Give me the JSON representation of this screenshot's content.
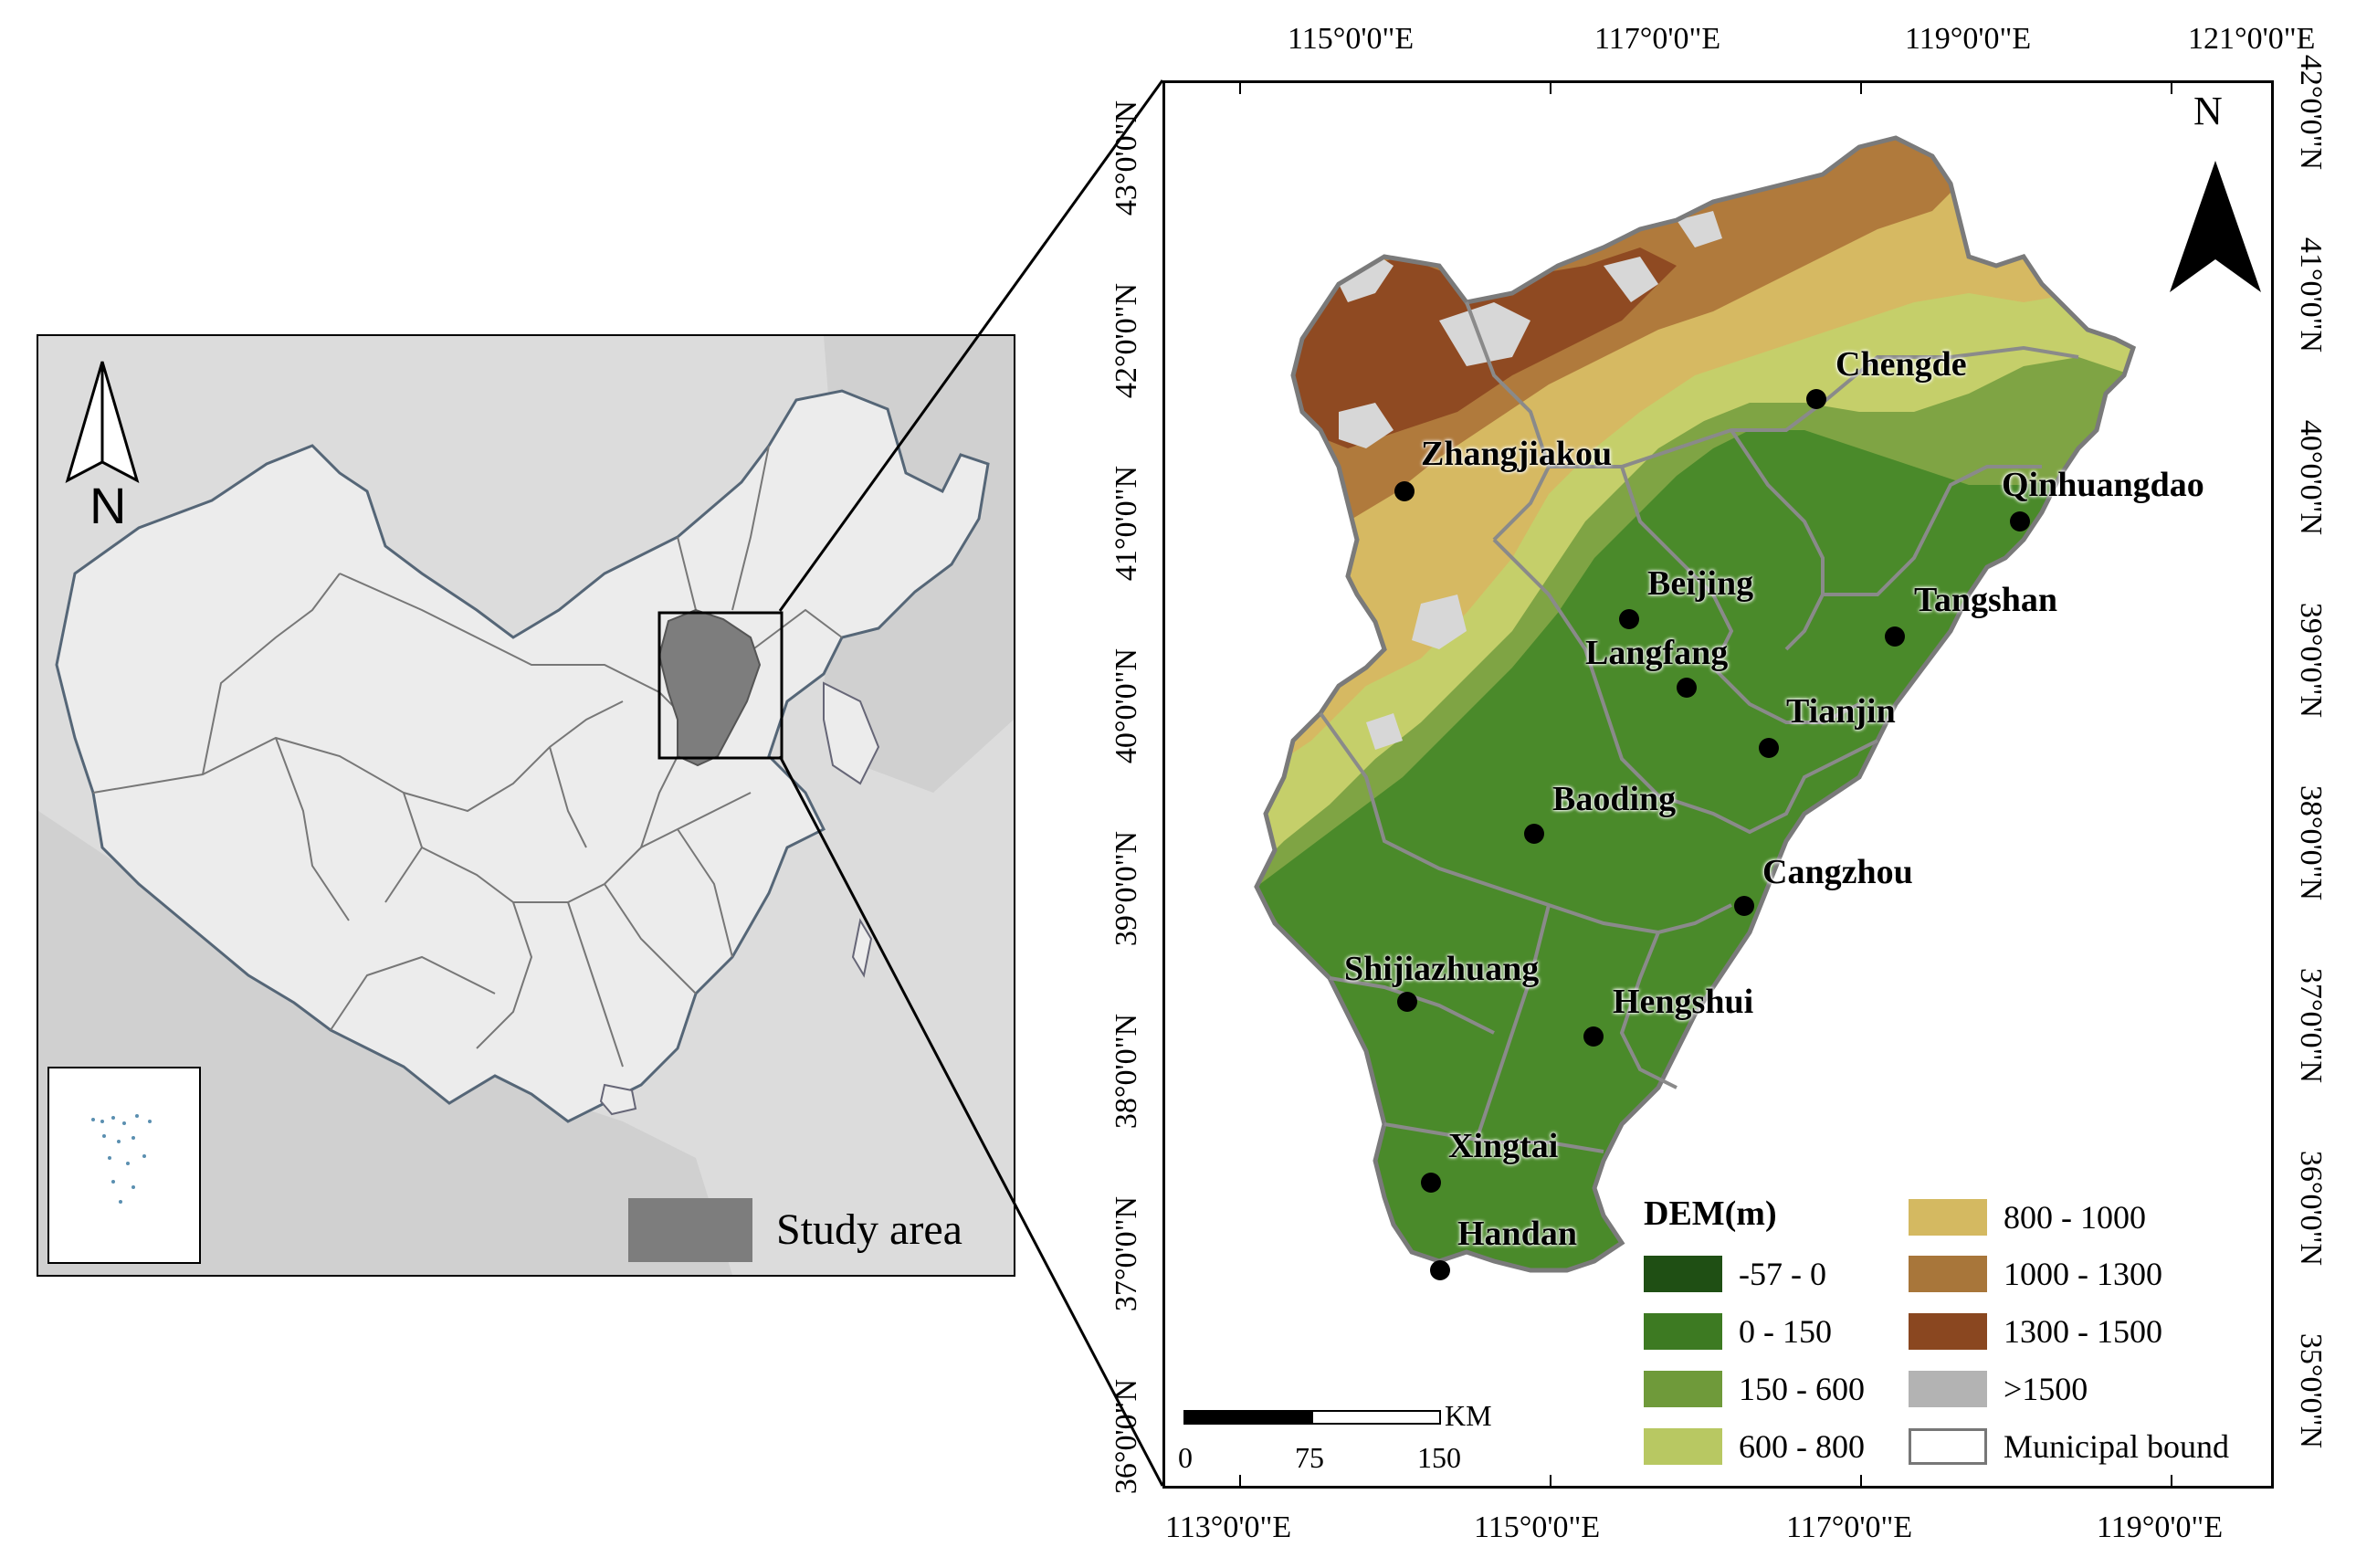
{
  "inset_map": {
    "legend": {
      "label": "Study area",
      "color": "#7d7d7d"
    },
    "north_arrow_label": "N",
    "background_color": "#dcdcdc",
    "land_color": "#ededed"
  },
  "main_map": {
    "north_arrow_label": "N",
    "top_axis_labels": [
      "115°0'0\"E",
      "117°0'0\"E",
      "119°0'0\"E",
      "121°0'0\"E"
    ],
    "bottom_axis_labels": [
      "113°0'0\"E",
      "115°0'0\"E",
      "117°0'0\"E",
      "119°0'0\"E"
    ],
    "left_axis_labels": [
      "43°0'0\"N",
      "42°0'0\"N",
      "41°0'0\"N",
      "40°0'0\"N",
      "39°0'0\"N",
      "38°0'0\"N",
      "37°0'0\"N",
      "36°0'0\"N"
    ],
    "right_axis_labels": [
      "42°0'0\"N",
      "41°0'0\"N",
      "40°0'0\"N",
      "39°0'0\"N",
      "38°0'0\"N",
      "37°0'0\"N",
      "36°0'0\"N",
      "35°0'0\"N"
    ],
    "cities": [
      {
        "name": "Chengde"
      },
      {
        "name": "Zhangjiakou"
      },
      {
        "name": "Qinhuangdao"
      },
      {
        "name": "Beijing"
      },
      {
        "name": "Tangshan"
      },
      {
        "name": "Langfang"
      },
      {
        "name": "Tianjin"
      },
      {
        "name": "Baoding"
      },
      {
        "name": "Cangzhou"
      },
      {
        "name": "Shijiazhuang"
      },
      {
        "name": "Hengshui"
      },
      {
        "name": "Xingtai"
      },
      {
        "name": "Handan"
      }
    ]
  },
  "legend": {
    "title": "DEM(m)",
    "items": [
      {
        "label": "-57 - 0",
        "color": "#1f4f14"
      },
      {
        "label": "0 - 150",
        "color": "#3d7a22"
      },
      {
        "label": "150 - 600",
        "color": "#6f9a3a"
      },
      {
        "label": "600 - 800",
        "color": "#b8c862"
      },
      {
        "label": "800 - 1000",
        "color": "#d4b961"
      },
      {
        "label": "1000 - 1300",
        "color": "#a8763a"
      },
      {
        "label": "1300 - 1500",
        "color": "#8a4720"
      },
      {
        "label": ">1500",
        "color": "#b3b3b3"
      },
      {
        "label": "Municipal bound",
        "color": "#ffffff"
      }
    ]
  },
  "scale_bar": {
    "unit": "KM",
    "ticks": [
      "0",
      "75",
      "150"
    ]
  }
}
